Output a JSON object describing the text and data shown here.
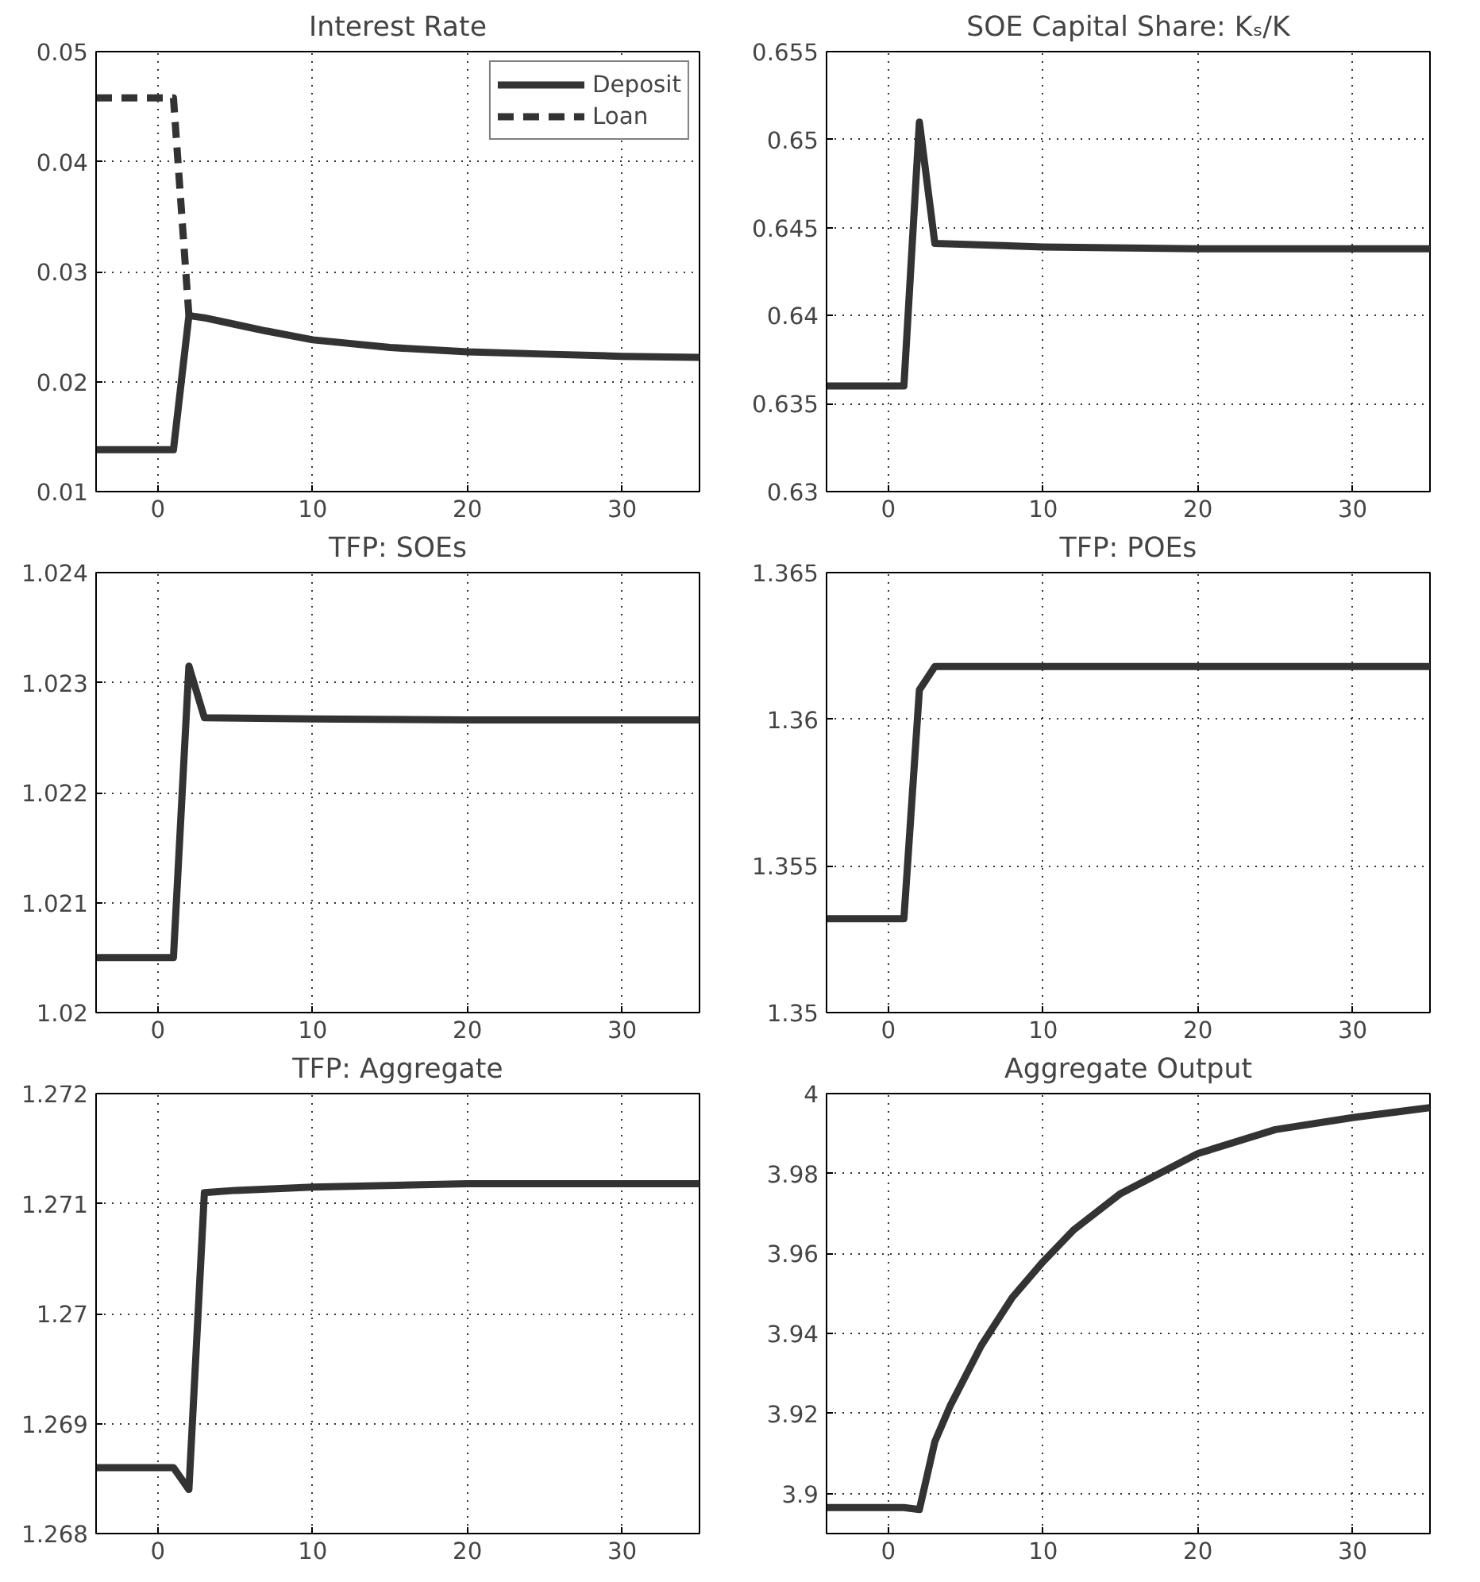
{
  "chart_data": [
    {
      "type": "line",
      "title": "Interest Rate",
      "xlim": [
        -4,
        35
      ],
      "xticks": [
        0,
        10,
        20,
        30
      ],
      "ylim": [
        0.01,
        0.05
      ],
      "yticks": [
        0.01,
        0.02,
        0.03,
        0.04,
        0.05
      ],
      "grid": true,
      "legend": "top right",
      "series": [
        {
          "name": "Deposit",
          "color": "#333333",
          "line_style": "solid",
          "x": [
            -4,
            -3,
            -2,
            -1,
            0,
            1,
            2,
            3,
            5,
            7,
            10,
            15,
            20,
            25,
            30,
            35
          ],
          "values": [
            0.0138,
            0.0138,
            0.0138,
            0.0138,
            0.0138,
            0.0138,
            0.026,
            0.0258,
            0.0252,
            0.0246,
            0.0238,
            0.0231,
            0.0227,
            0.0225,
            0.0223,
            0.0222
          ]
        },
        {
          "name": "Loan",
          "color": "#333333",
          "line_style": "dashed",
          "x": [
            -4,
            -3,
            -2,
            -1,
            0,
            1,
            2
          ],
          "values": [
            0.0458,
            0.0458,
            0.0458,
            0.0458,
            0.0458,
            0.0458,
            0.026
          ]
        }
      ]
    },
    {
      "type": "line",
      "title": "SOE Capital Share: Kₛ/K",
      "xlim": [
        -4,
        35
      ],
      "xticks": [
        0,
        10,
        20,
        30
      ],
      "ylim": [
        0.63,
        0.655
      ],
      "yticks": [
        0.63,
        0.635,
        0.64,
        0.645,
        0.65,
        0.655
      ],
      "grid": true,
      "series": [
        {
          "color": "#333333",
          "x": [
            -4,
            -3,
            -2,
            -1,
            0,
            1,
            2,
            3,
            10,
            20,
            35
          ],
          "values": [
            0.636,
            0.636,
            0.636,
            0.636,
            0.636,
            0.636,
            0.651,
            0.6441,
            0.6439,
            0.6438,
            0.6438
          ]
        }
      ]
    },
    {
      "type": "line",
      "title": "TFP: SOEs",
      "xlim": [
        -4,
        35
      ],
      "xticks": [
        0,
        10,
        20,
        30
      ],
      "ylim": [
        1.02,
        1.024
      ],
      "yticks": [
        1.02,
        1.021,
        1.022,
        1.023,
        1.024
      ],
      "grid": true,
      "series": [
        {
          "color": "#333333",
          "x": [
            -4,
            -3,
            -2,
            -1,
            0,
            1,
            2,
            3,
            10,
            20,
            35
          ],
          "values": [
            1.0205,
            1.0205,
            1.0205,
            1.0205,
            1.0205,
            1.0205,
            1.02315,
            1.02268,
            1.02267,
            1.02266,
            1.02266
          ]
        }
      ]
    },
    {
      "type": "line",
      "title": "TFP: POEs",
      "xlim": [
        -4,
        35
      ],
      "xticks": [
        0,
        10,
        20,
        30
      ],
      "ylim": [
        1.35,
        1.365
      ],
      "yticks": [
        1.35,
        1.355,
        1.36,
        1.365
      ],
      "grid": true,
      "series": [
        {
          "color": "#333333",
          "x": [
            -4,
            -3,
            -2,
            -1,
            0,
            1,
            2,
            3,
            10,
            20,
            35
          ],
          "values": [
            1.3532,
            1.3532,
            1.3532,
            1.3532,
            1.3532,
            1.3532,
            1.361,
            1.3618,
            1.3618,
            1.3618,
            1.3618
          ]
        }
      ]
    },
    {
      "type": "line",
      "title": "TFP: Aggregate",
      "xlim": [
        -4,
        35
      ],
      "xticks": [
        0,
        10,
        20,
        30
      ],
      "ylim": [
        1.268,
        1.272
      ],
      "yticks": [
        1.268,
        1.269,
        1.27,
        1.271,
        1.272
      ],
      "grid": true,
      "series": [
        {
          "color": "#333333",
          "x": [
            -4,
            -3,
            -2,
            -1,
            0,
            1,
            2,
            3,
            5,
            10,
            20,
            35
          ],
          "values": [
            1.2686,
            1.2686,
            1.2686,
            1.2686,
            1.2686,
            1.2686,
            1.2684,
            1.2711,
            1.27112,
            1.27115,
            1.27118,
            1.27118
          ]
        }
      ]
    },
    {
      "type": "line",
      "title": "Aggregate Output",
      "xlim": [
        -4,
        35
      ],
      "xticks": [
        0,
        10,
        20,
        30
      ],
      "ylim": [
        3.89,
        4
      ],
      "yticks": [
        3.9,
        3.92,
        3.94,
        3.96,
        3.98,
        4
      ],
      "grid": true,
      "series": [
        {
          "color": "#333333",
          "x": [
            -4,
            -3,
            -2,
            -1,
            0,
            1,
            2,
            3,
            4,
            6,
            8,
            10,
            12,
            15,
            20,
            25,
            30,
            35
          ],
          "values": [
            3.8965,
            3.8965,
            3.8965,
            3.8965,
            3.8965,
            3.8965,
            3.896,
            3.913,
            3.922,
            3.937,
            3.949,
            3.958,
            3.966,
            3.975,
            3.985,
            3.991,
            3.994,
            3.9965
          ]
        }
      ]
    }
  ]
}
